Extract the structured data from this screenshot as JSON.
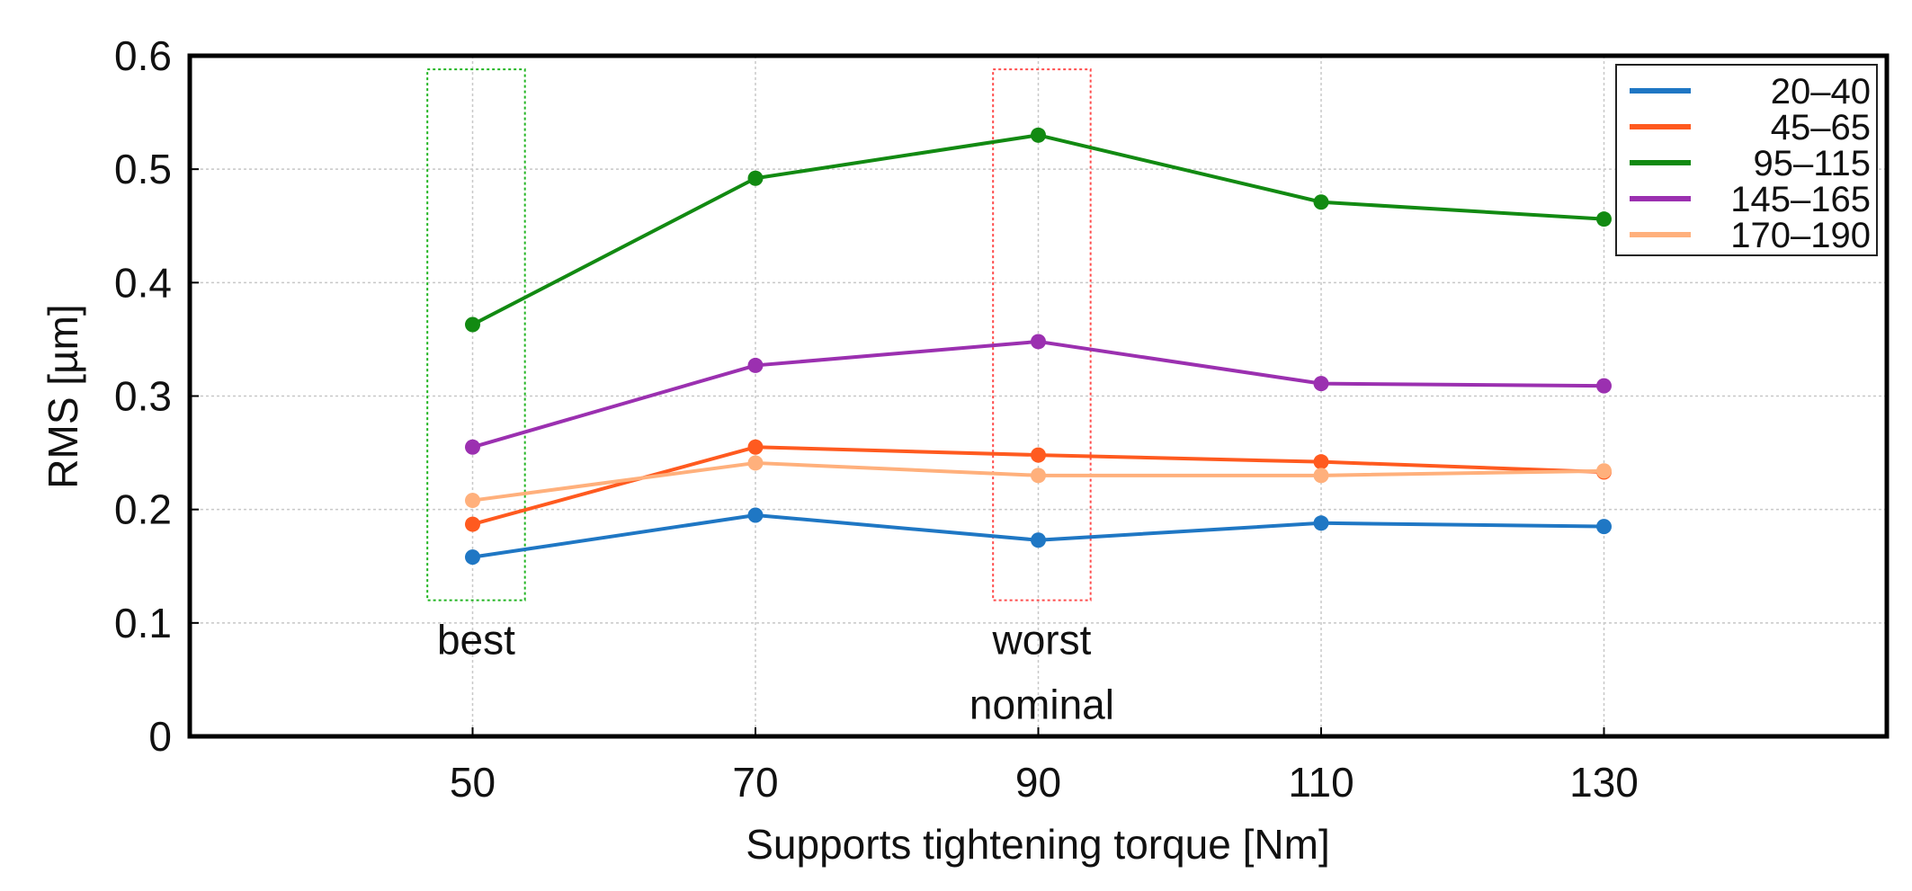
{
  "chart_data": {
    "type": "line",
    "title": "",
    "xlabel": "Supports tightening torque [Nm]",
    "ylabel": "RMS [µm]",
    "x": [
      50,
      70,
      90,
      110,
      130
    ],
    "x_tick_labels": [
      "50",
      "70",
      "90",
      "110",
      "130"
    ],
    "xlim": [
      30,
      150
    ],
    "ylim": [
      0,
      0.6
    ],
    "y_ticks": [
      0,
      0.1,
      0.2,
      0.3,
      0.4,
      0.5,
      0.6
    ],
    "y_tick_labels": [
      "0",
      "0.1",
      "0.2",
      "0.3",
      "0.4",
      "0.5",
      "0.6"
    ],
    "grid": true,
    "legend_position": "top-right",
    "series": [
      {
        "name": "20–40",
        "color": "#1f77c4",
        "values": [
          0.158,
          0.195,
          0.173,
          0.188,
          0.185
        ]
      },
      {
        "name": "45–65",
        "color": "#ff5a1f",
        "values": [
          0.187,
          0.255,
          0.248,
          0.242,
          0.233
        ]
      },
      {
        "name": "95–115",
        "color": "#128a12",
        "values": [
          0.363,
          0.492,
          0.53,
          0.471,
          0.456
        ]
      },
      {
        "name": "145–165",
        "color": "#9b30b0",
        "values": [
          0.255,
          0.327,
          0.348,
          0.311,
          0.309
        ]
      },
      {
        "name": "170–190",
        "color": "#ffb07c",
        "values": [
          0.208,
          0.241,
          0.23,
          0.23,
          0.234
        ]
      }
    ],
    "highlight_boxes": [
      {
        "name": "best",
        "color": "#22b522",
        "x_range": [
          46.8,
          53.7
        ],
        "y_range": [
          0.12,
          0.588
        ],
        "labels": [
          "best"
        ]
      },
      {
        "name": "worst",
        "color": "#ff4d4d",
        "x_range": [
          86.8,
          93.7
        ],
        "y_range": [
          0.12,
          0.588
        ],
        "labels": [
          "worst",
          "nominal"
        ]
      }
    ]
  }
}
